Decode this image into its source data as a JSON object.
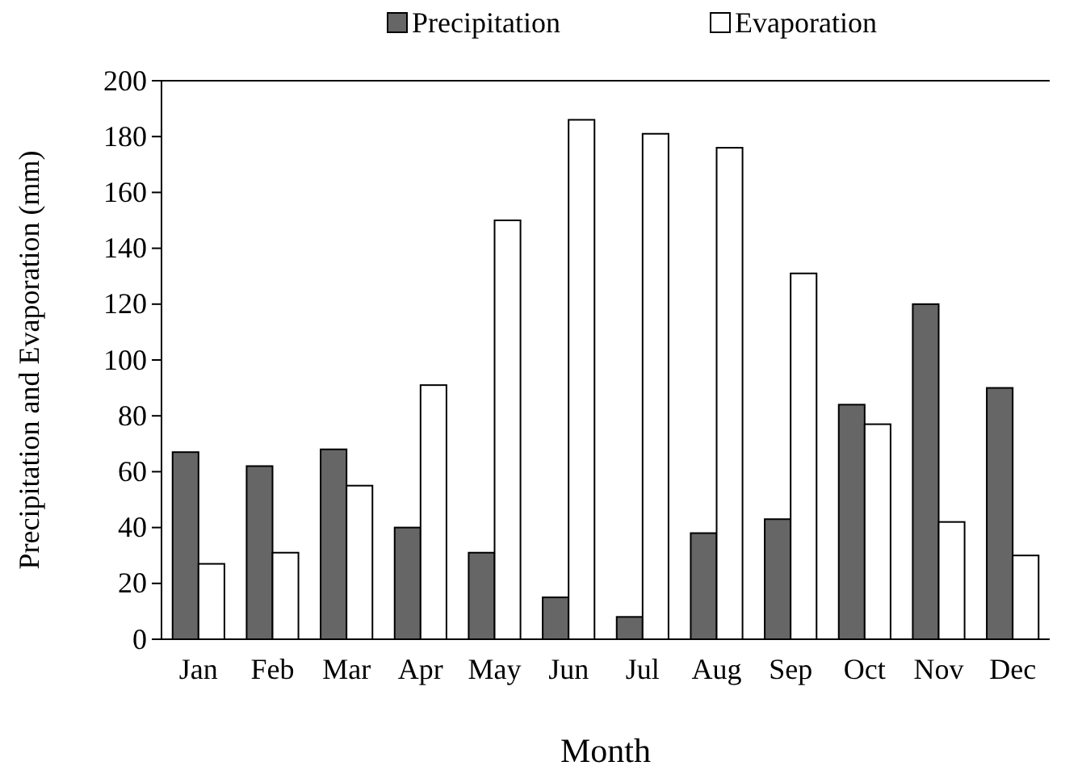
{
  "chart_data": {
    "type": "bar",
    "xlabel": "Month",
    "ylabel": "Precipitation and Evaporation (mm)",
    "categories": [
      "Jan",
      "Feb",
      "Mar",
      "Apr",
      "May",
      "Jun",
      "Jul",
      "Aug",
      "Sep",
      "Oct",
      "Nov",
      "Dec"
    ],
    "series": [
      {
        "name": "Precipitation",
        "color": "#666666",
        "values": [
          67,
          62,
          68,
          40,
          31,
          15,
          8,
          38,
          43,
          84,
          120,
          90
        ]
      },
      {
        "name": "Evaporation",
        "color": "#ffffff",
        "values": [
          27,
          31,
          55,
          91,
          150,
          186,
          181,
          176,
          131,
          77,
          42,
          30
        ]
      }
    ],
    "ylim": [
      0,
      200
    ],
    "yticks": [
      0,
      20,
      40,
      60,
      80,
      100,
      120,
      140,
      160,
      180,
      200
    ],
    "grid": false,
    "legend": "top"
  }
}
